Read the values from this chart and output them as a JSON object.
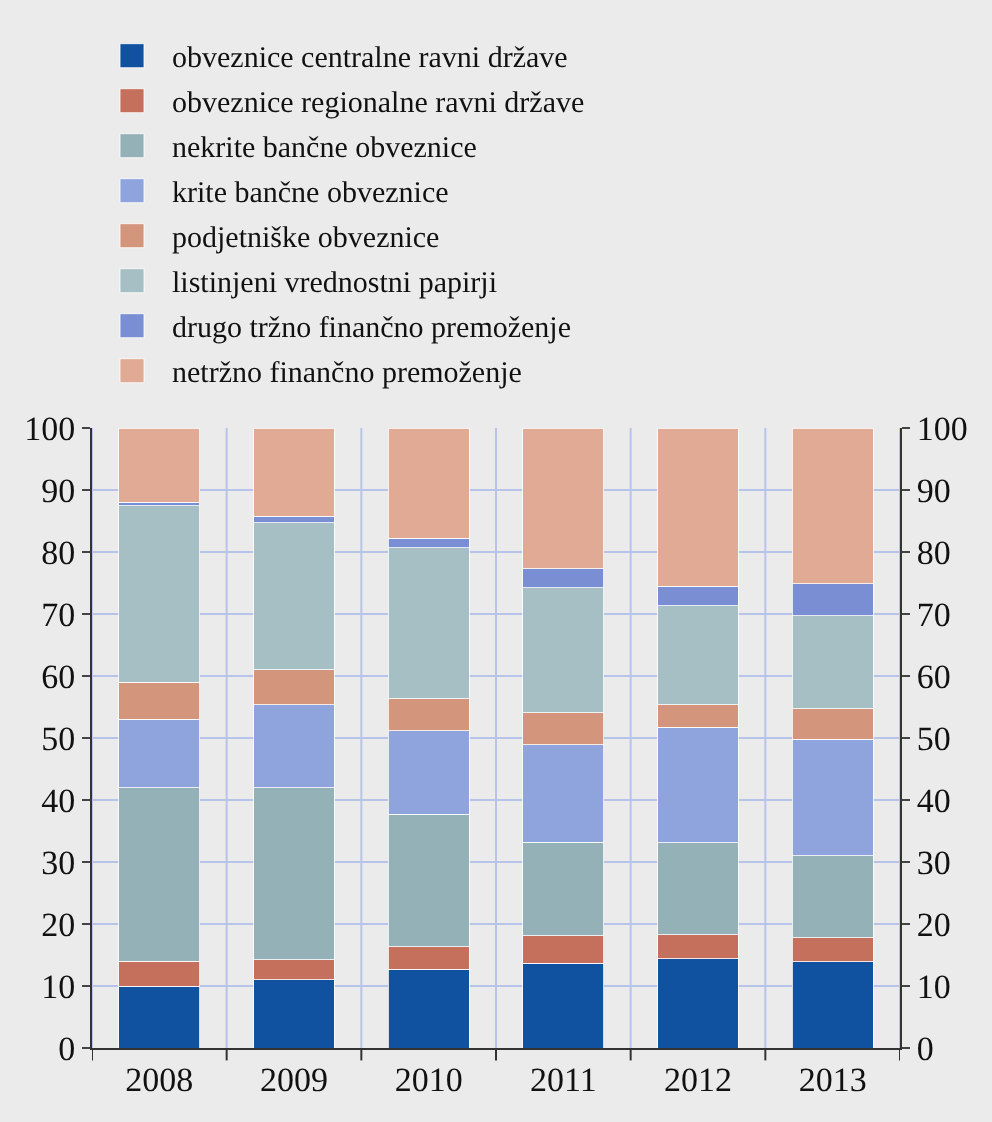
{
  "chart_data": {
    "type": "bar",
    "stacked": true,
    "categories": [
      "2008",
      "2009",
      "2010",
      "2011",
      "2012",
      "2013"
    ],
    "series": [
      {
        "name": "obveznice centralne ravni države",
        "color": "#1152a0",
        "values": [
          10,
          11,
          12.7,
          13.7,
          14.4,
          13.9
        ]
      },
      {
        "name": "obveznice regionalne ravni države",
        "color": "#c4705c",
        "values": [
          4,
          3.2,
          3.6,
          4.4,
          3.9,
          3.9
        ]
      },
      {
        "name": "nekrite bančne obveznice",
        "color": "#93b1b7",
        "values": [
          28,
          27.8,
          21.4,
          15.1,
          14.8,
          13.2
        ]
      },
      {
        "name": "krite bančne obveznice",
        "color": "#8fa3dd",
        "values": [
          11,
          13.4,
          13.5,
          15.7,
          18.6,
          18.8
        ]
      },
      {
        "name": "podjetniške obveznice",
        "color": "#d4957d",
        "values": [
          6,
          5.6,
          5.1,
          5.2,
          3.7,
          4.9
        ]
      },
      {
        "name": "listinjeni vrednostni papirji",
        "color": "#a5bfc4",
        "values": [
          28.5,
          23.7,
          24.4,
          20.1,
          15.9,
          15
        ]
      },
      {
        "name": "drugo tržno finančno premoženje",
        "color": "#7a8fd3",
        "values": [
          0.5,
          1.1,
          1.5,
          3.1,
          3.2,
          5.2
        ]
      },
      {
        "name": "netržno finančno premoženje",
        "color": "#e0aa94",
        "values": [
          12,
          14.2,
          17.8,
          22.7,
          25.5,
          25.1
        ]
      }
    ],
    "ylim": [
      0,
      100
    ],
    "yticks": [
      0,
      10,
      20,
      30,
      40,
      50,
      60,
      70,
      80,
      90,
      100
    ],
    "y2lim": [
      0,
      100
    ],
    "y2ticks": [
      0,
      10,
      20,
      30,
      40,
      50,
      60,
      70,
      80,
      90,
      100
    ],
    "grid": true,
    "legend": "top"
  }
}
